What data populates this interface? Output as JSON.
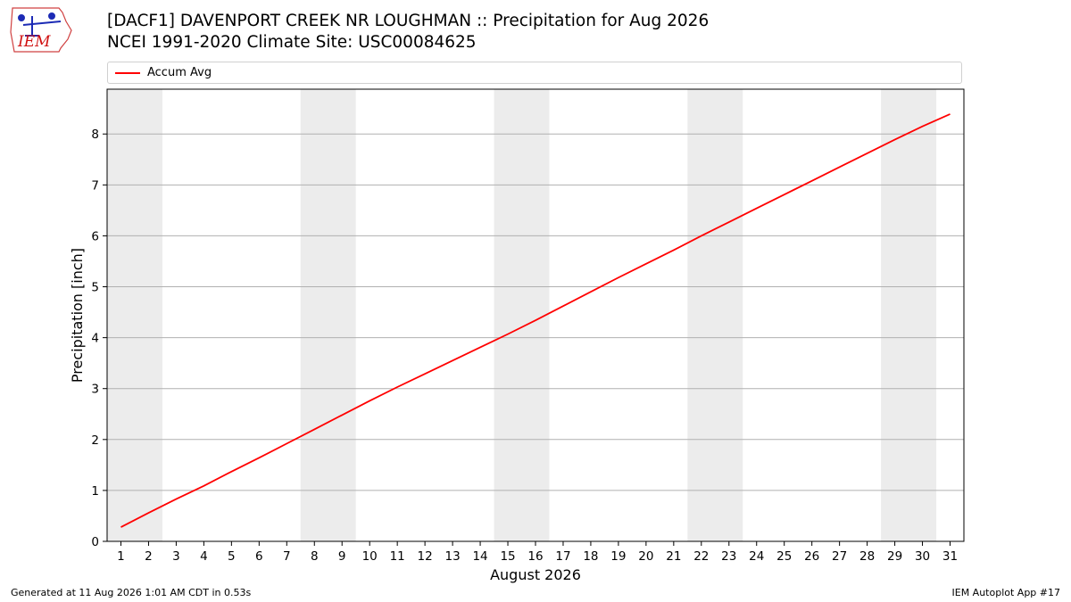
{
  "header": {
    "title_line1": "[DACF1] DAVENPORT CREEK NR LOUGHMAN :: Precipitation for Aug 2026",
    "title_line2": "NCEI 1991-2020 Climate Site: USC00084625"
  },
  "logo": {
    "text": "IEM"
  },
  "footer": {
    "generated": "Generated at 11 Aug 2026 1:01 AM CDT in 0.53s",
    "app": "IEM Autoplot App #17"
  },
  "chart_data": {
    "type": "line",
    "title": "[DACF1] DAVENPORT CREEK NR LOUGHMAN :: Precipitation for Aug 2026",
    "subtitle": "NCEI 1991-2020 Climate Site: USC00084625",
    "xlabel": "August 2026",
    "ylabel": "Precipitation [inch]",
    "xlim": [
      0.5,
      31.5
    ],
    "ylim": [
      0,
      8.88
    ],
    "x_ticks": [
      1,
      2,
      3,
      4,
      5,
      6,
      7,
      8,
      9,
      10,
      11,
      12,
      13,
      14,
      15,
      16,
      17,
      18,
      19,
      20,
      21,
      22,
      23,
      24,
      25,
      26,
      27,
      28,
      29,
      30,
      31
    ],
    "y_ticks": [
      0,
      1,
      2,
      3,
      4,
      5,
      6,
      7,
      8
    ],
    "grid": "horizontal",
    "legend_position": "top",
    "weekend_bands": [
      [
        0.5,
        2.5
      ],
      [
        7.5,
        9.5
      ],
      [
        14.5,
        16.5
      ],
      [
        21.5,
        23.5
      ],
      [
        28.5,
        30.5
      ]
    ],
    "band_color": "#ececec",
    "series": [
      {
        "name": "Accum Avg",
        "color": "#ff0000",
        "x": [
          1,
          2,
          3,
          4,
          5,
          6,
          7,
          8,
          9,
          10,
          11,
          12,
          13,
          14,
          15,
          16,
          17,
          18,
          19,
          20,
          21,
          22,
          23,
          24,
          25,
          26,
          27,
          28,
          29,
          30,
          31
        ],
        "y": [
          0.28,
          0.56,
          0.83,
          1.09,
          1.37,
          1.64,
          1.92,
          2.2,
          2.48,
          2.76,
          3.03,
          3.29,
          3.55,
          3.81,
          4.07,
          4.34,
          4.62,
          4.9,
          5.18,
          5.45,
          5.72,
          6.0,
          6.27,
          6.54,
          6.81,
          7.08,
          7.35,
          7.62,
          7.89,
          8.15,
          8.39
        ]
      }
    ]
  }
}
